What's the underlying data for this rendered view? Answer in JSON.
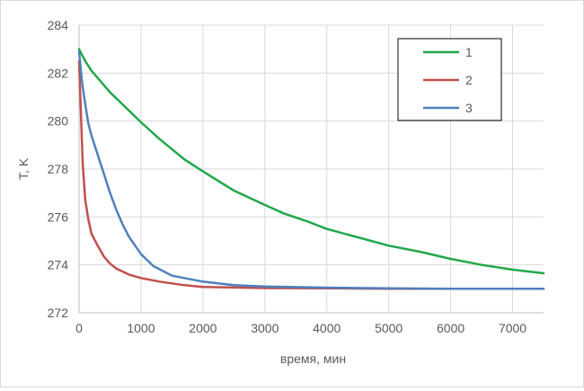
{
  "chart_data": {
    "type": "line",
    "title": "",
    "xlabel": "время,  мин",
    "ylabel": "T, K",
    "xlim": [
      0,
      7500
    ],
    "ylim": [
      272,
      284
    ],
    "xticks": [
      0,
      1000,
      2000,
      3000,
      4000,
      5000,
      6000,
      7000
    ],
    "yticks": [
      272,
      274,
      276,
      278,
      280,
      282,
      284
    ],
    "grid": true,
    "legend_position": "top-right",
    "series": [
      {
        "name": "1",
        "color": "#21a84a",
        "x": [
          0,
          100,
          200,
          300,
          500,
          700,
          1000,
          1300,
          1700,
          2000,
          2500,
          3000,
          3300,
          3700,
          4000,
          4500,
          5000,
          5500,
          6000,
          6500,
          7000,
          7500
        ],
        "y": [
          283.0,
          282.5,
          282.1,
          281.8,
          281.2,
          280.7,
          279.95,
          279.25,
          278.4,
          277.9,
          277.1,
          276.5,
          276.15,
          275.8,
          275.5,
          275.15,
          274.8,
          274.55,
          274.25,
          274.0,
          273.8,
          273.65
        ]
      },
      {
        "name": "2",
        "color": "#c0504d",
        "x": [
          0,
          30,
          60,
          100,
          150,
          200,
          300,
          400,
          500,
          600,
          800,
          1000,
          1300,
          1700,
          2000,
          3000,
          4000,
          5000,
          6000,
          7500
        ],
        "y": [
          282.5,
          280.3,
          278.2,
          276.7,
          275.9,
          275.3,
          274.8,
          274.35,
          274.05,
          273.85,
          273.6,
          273.45,
          273.3,
          273.15,
          273.08,
          273.03,
          273.02,
          273.0,
          273.0,
          273.0
        ]
      },
      {
        "name": "3",
        "color": "#4f81bd",
        "x": [
          0,
          50,
          100,
          150,
          200,
          300,
          400,
          500,
          600,
          700,
          800,
          1000,
          1200,
          1500,
          1800,
          2000,
          2500,
          3000,
          4000,
          5000,
          6000,
          7500
        ],
        "y": [
          282.9,
          281.6,
          280.7,
          279.9,
          279.4,
          278.6,
          277.8,
          277.0,
          276.3,
          275.7,
          275.2,
          274.45,
          273.95,
          273.55,
          273.4,
          273.3,
          273.15,
          273.1,
          273.05,
          273.02,
          273.0,
          273.0
        ]
      }
    ]
  }
}
